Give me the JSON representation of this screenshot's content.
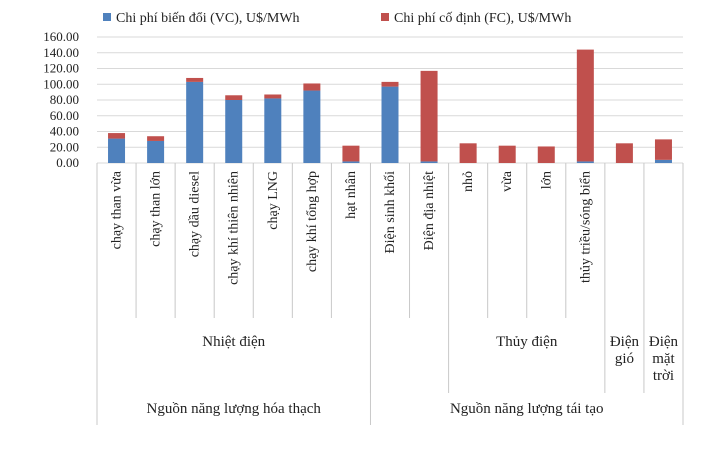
{
  "chart_data": {
    "type": "bar",
    "stacked": true,
    "title": "",
    "xlabel": "",
    "ylabel": "",
    "ylim": [
      0,
      160
    ],
    "yticks": [
      "0.00",
      "20.00",
      "40.00",
      "60.00",
      "80.00",
      "100.00",
      "120.00",
      "140.00",
      "160.00"
    ],
    "grid": true,
    "legend_position": "top",
    "categories": [
      "chạy than vừa",
      "chạy than lớn",
      "chạy dầu diesel",
      "chạy khí thiên nhiên",
      "chạy LNG",
      "chạy khí tổng hợp",
      "hạt nhân",
      "Điện sinh khối",
      "Điện địa nhiệt",
      "nhỏ",
      "vừa",
      "lớn",
      "thủy triều/sóng biển",
      "",
      ""
    ],
    "series": [
      {
        "name": "Chi phí biến đổi (VC), U$/MWh",
        "color": "#4f81bd",
        "values": [
          31,
          28,
          103,
          80,
          82,
          92,
          2,
          97,
          2,
          0,
          0,
          0,
          2,
          0,
          4
        ]
      },
      {
        "name": "Chi phí cố định (FC), U$/MWh",
        "color": "#c0504d",
        "values": [
          7,
          6,
          5,
          6,
          5,
          9,
          20,
          6,
          115,
          25,
          22,
          21,
          142,
          25,
          26
        ]
      }
    ],
    "group_labels_level1": [
      {
        "label": "Nhiệt điện",
        "start": 0,
        "end": 6
      },
      {
        "label": "Thủy điện",
        "start": 9,
        "end": 12
      },
      {
        "label": "Điện gió",
        "start": 13,
        "end": 13
      },
      {
        "label": "Điện mặt trời",
        "start": 14,
        "end": 14
      }
    ],
    "group_labels_level2": [
      {
        "label": "Nguồn năng lượng hóa thạch",
        "start": 0,
        "end": 6
      },
      {
        "label": "Nguồn năng lượng tái tạo",
        "start": 7,
        "end": 14
      }
    ]
  }
}
